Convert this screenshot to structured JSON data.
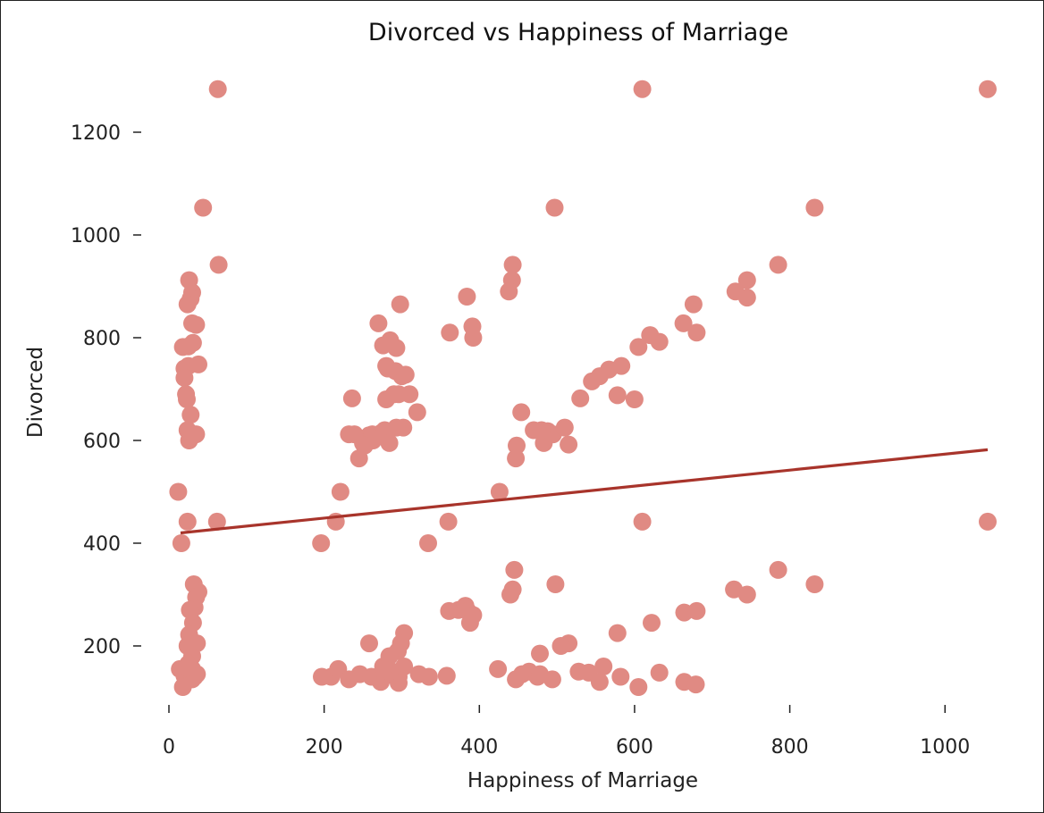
{
  "chart_data": {
    "type": "scatter",
    "title": "Divorced vs Happiness of Marriage",
    "xlabel": "Happiness of Marriage",
    "ylabel": "Divorced",
    "xlim": [
      0,
      1060
    ],
    "ylim": [
      115,
      1285
    ],
    "xticks": [
      0,
      200,
      400,
      600,
      800,
      1000
    ],
    "yticks": [
      200,
      400,
      600,
      800,
      1000,
      1200
    ],
    "grid": false,
    "colors": {
      "points": "#e08a83",
      "trend": "#a8342b"
    },
    "trend_line": {
      "x": [
        15,
        1055
      ],
      "y": [
        420,
        582
      ]
    },
    "series": [
      {
        "x": [
          63,
          610,
          1055,
          44,
          497,
          832,
          64,
          443,
          442,
          438,
          745,
          730,
          745,
          26,
          30,
          28,
          24,
          30,
          35,
          25,
          31,
          18,
          20,
          25,
          38,
          20,
          22,
          23,
          28,
          24,
          26,
          35,
          270,
          285,
          293,
          300,
          280,
          276,
          282,
          292,
          305,
          310,
          280,
          302,
          320,
          298,
          290,
          274,
          236,
          232,
          250,
          258,
          245,
          262,
          263,
          239,
          252,
          278,
          284,
          293,
          362,
          384,
          392,
          391,
          296,
          676,
          663,
          620,
          632,
          605,
          680,
          583,
          578,
          567,
          545,
          555,
          530,
          600,
          785,
          454,
          470,
          483,
          488,
          495,
          510,
          480,
          448,
          515,
          447,
          12,
          221,
          426,
          215,
          24,
          16,
          196,
          334,
          360,
          610,
          1055,
          62,
          445,
          443,
          440,
          373,
          382,
          385,
          392,
          388,
          361,
          32,
          38,
          35,
          33,
          27,
          31,
          26,
          36,
          30,
          24,
          25,
          30,
          498,
          515,
          505,
          478,
          622,
          664,
          680,
          728,
          745,
          785,
          832,
          578,
          303,
          299,
          295,
          284,
          276,
          258,
          14,
          20,
          30,
          33,
          18,
          36,
          22,
          27,
          197,
          209,
          218,
          232,
          246,
          261,
          273,
          279,
          288,
          296,
          303,
          322,
          335,
          358,
          424,
          447,
          455,
          464,
          475,
          478,
          494,
          528,
          541,
          555,
          560,
          582,
          605,
          632,
          664,
          679,
          296,
          284,
          277
        ],
        "y": [
          1284,
          1284,
          1284,
          1053,
          1053,
          1053,
          942,
          942,
          912,
          890,
          912,
          890,
          878,
          912,
          888,
          876,
          865,
          828,
          825,
          783,
          790,
          782,
          740,
          745,
          748,
          722,
          690,
          680,
          650,
          620,
          600,
          612,
          828,
          795,
          780,
          725,
          745,
          785,
          740,
          735,
          728,
          690,
          680,
          625,
          655,
          865,
          690,
          615,
          682,
          612,
          595,
          610,
          565,
          612,
          600,
          612,
          590,
          620,
          595,
          625,
          810,
          880,
          800,
          822,
          690,
          865,
          828,
          805,
          792,
          782,
          810,
          745,
          688,
          738,
          715,
          725,
          682,
          680,
          942,
          655,
          620,
          595,
          618,
          612,
          625,
          620,
          590,
          592,
          565,
          500,
          500,
          500,
          442,
          442,
          400,
          400,
          400,
          442,
          442,
          442,
          442,
          348,
          310,
          300,
          270,
          278,
          268,
          260,
          245,
          268,
          320,
          305,
          295,
          275,
          270,
          245,
          222,
          205,
          180,
          200,
          165,
          155,
          320,
          205,
          200,
          185,
          245,
          265,
          268,
          310,
          300,
          348,
          320,
          225,
          225,
          205,
          190,
          180,
          160,
          205,
          155,
          142,
          135,
          140,
          120,
          145,
          158,
          160,
          140,
          140,
          155,
          135,
          145,
          140,
          130,
          142,
          150,
          140,
          160,
          145,
          140,
          142,
          155,
          135,
          145,
          150,
          140,
          145,
          135,
          150,
          148,
          130,
          160,
          140,
          120,
          148,
          130,
          125,
          128,
          150,
          155
        ]
      }
    ]
  }
}
